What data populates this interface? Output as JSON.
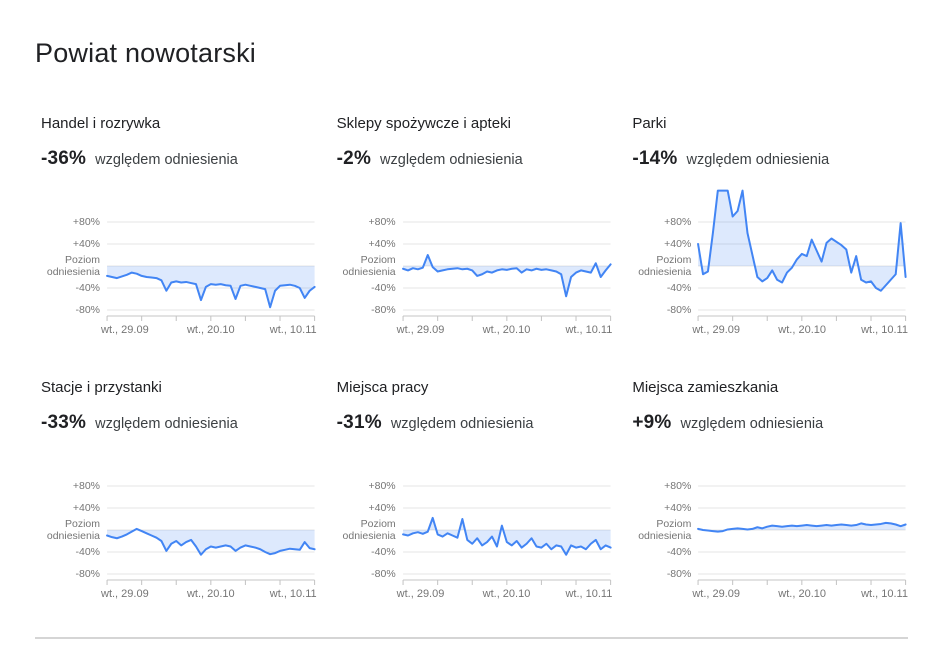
{
  "page": {
    "title": "Powiat nowotarski"
  },
  "colors": {
    "accent_line": "#4285f4",
    "area_fill": "rgba(66,133,244,0.18)",
    "gridline": "#e6e6e6",
    "axis_line": "#c4c4c4",
    "title_text": "#202124",
    "axis_text": "#757575"
  },
  "axis": {
    "y_tick_labels": [
      "+80%",
      "+40%",
      "-40%",
      "-80%"
    ],
    "baseline_label": [
      "Poziom",
      "odniesienia"
    ],
    "x_tick_labels": [
      "wt., 29.09",
      "wt., 20.10",
      "wt., 10.11"
    ],
    "grid_values": [
      80,
      40,
      0,
      -40,
      -80
    ],
    "week_tick_days": [
      0,
      7,
      14,
      21,
      28,
      35,
      42
    ]
  },
  "chart_data": [
    {
      "type": "area",
      "title": "Handel i rozrywka",
      "change": "-36%",
      "change_suffix": "względem odniesienia",
      "ylabel": "% względem odniesienia",
      "ylim": [
        -95,
        137
      ],
      "x_ticks": [
        "wt., 29.09",
        "wt., 20.10",
        "wt., 10.11"
      ],
      "values": [
        -18,
        -20,
        -22,
        -19,
        -16,
        -12,
        -14,
        -18,
        -20,
        -21,
        -22,
        -26,
        -45,
        -30,
        -28,
        -30,
        -29,
        -31,
        -33,
        -62,
        -38,
        -33,
        -34,
        -33,
        -35,
        -36,
        -60,
        -36,
        -34,
        -36,
        -38,
        -40,
        -42,
        -75,
        -45,
        -36,
        -35,
        -34,
        -36,
        -40,
        -58,
        -45,
        -38
      ]
    },
    {
      "type": "area",
      "title": "Sklepy spożywcze i apteki",
      "change": "-2%",
      "change_suffix": "względem odniesienia",
      "ylabel": "% względem odniesienia",
      "ylim": [
        -95,
        137
      ],
      "x_ticks": [
        "wt., 29.09",
        "wt., 20.10",
        "wt., 10.11"
      ],
      "values": [
        -5,
        -8,
        -4,
        -6,
        -3,
        20,
        -2,
        -10,
        -8,
        -6,
        -5,
        -4,
        -6,
        -5,
        -8,
        -18,
        -15,
        -10,
        -12,
        -8,
        -6,
        -7,
        -5,
        -4,
        -12,
        -6,
        -8,
        -5,
        -7,
        -6,
        -8,
        -10,
        -15,
        -55,
        -20,
        -12,
        -8,
        -10,
        -12,
        5,
        -20,
        -8,
        3
      ]
    },
    {
      "type": "area",
      "title": "Parki",
      "change": "-14%",
      "change_suffix": "względem odniesienia",
      "ylabel": "% względem odniesienia",
      "ylim": [
        -95,
        137
      ],
      "x_ticks": [
        "wt., 29.09",
        "wt., 20.10",
        "wt., 10.11"
      ],
      "values": [
        40,
        -15,
        -10,
        60,
        140,
        145,
        140,
        90,
        100,
        140,
        60,
        20,
        -20,
        -28,
        -22,
        -8,
        -25,
        -30,
        -12,
        -3,
        12,
        22,
        18,
        48,
        28,
        8,
        42,
        50,
        44,
        38,
        30,
        -12,
        18,
        -25,
        -30,
        -28,
        -40,
        -45,
        -35,
        -25,
        -15,
        78,
        -20
      ]
    },
    {
      "type": "area",
      "title": "Stacje i przystanki",
      "change": "-33%",
      "change_suffix": "względem odniesienia",
      "ylabel": "% względem odniesienia",
      "ylim": [
        -95,
        137
      ],
      "x_ticks": [
        "wt., 29.09",
        "wt., 20.10",
        "wt., 10.11"
      ],
      "values": [
        -10,
        -13,
        -15,
        -12,
        -8,
        -3,
        2,
        -2,
        -6,
        -10,
        -14,
        -20,
        -38,
        -25,
        -20,
        -28,
        -22,
        -18,
        -30,
        -45,
        -35,
        -30,
        -32,
        -30,
        -28,
        -30,
        -38,
        -32,
        -28,
        -30,
        -32,
        -35,
        -40,
        -44,
        -42,
        -38,
        -36,
        -34,
        -35,
        -36,
        -22,
        -33,
        -35
      ]
    },
    {
      "type": "area",
      "title": "Miejsca pracy",
      "change": "-31%",
      "change_suffix": "względem odniesienia",
      "ylabel": "% względem odniesienia",
      "ylim": [
        -95,
        137
      ],
      "x_ticks": [
        "wt., 29.09",
        "wt., 20.10",
        "wt., 10.11"
      ],
      "values": [
        -8,
        -10,
        -6,
        -4,
        -7,
        -3,
        22,
        -8,
        -12,
        -6,
        -10,
        -14,
        20,
        -18,
        -25,
        -15,
        -28,
        -22,
        -12,
        -30,
        8,
        -22,
        -28,
        -20,
        -32,
        -25,
        -15,
        -30,
        -32,
        -25,
        -35,
        -28,
        -30,
        -45,
        -28,
        -32,
        -30,
        -35,
        -25,
        -18,
        -35,
        -28,
        -32
      ]
    },
    {
      "type": "area",
      "title": "Miejsca zamieszkania",
      "change": "+9%",
      "change_suffix": "względem odniesienia",
      "ylabel": "% względem odniesienia",
      "ylim": [
        -95,
        137
      ],
      "x_ticks": [
        "wt., 29.09",
        "wt., 20.10",
        "wt., 10.11"
      ],
      "values": [
        2,
        0,
        -1,
        -2,
        -3,
        -2,
        1,
        2,
        3,
        2,
        1,
        2,
        5,
        3,
        6,
        8,
        7,
        6,
        7,
        8,
        7,
        8,
        9,
        8,
        7,
        8,
        9,
        8,
        9,
        10,
        9,
        8,
        9,
        12,
        10,
        9,
        10,
        11,
        13,
        12,
        10,
        7,
        10
      ]
    }
  ]
}
